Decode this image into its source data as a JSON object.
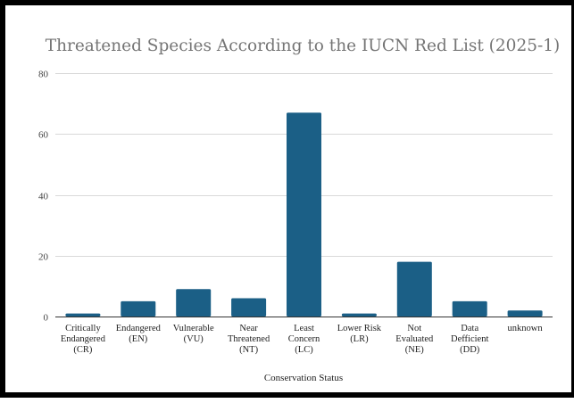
{
  "chart_data": {
    "type": "bar",
    "title": "Threatened Species According to the IUCN Red List (2025-1)",
    "xlabel": "Conservation Status",
    "ylabel": "",
    "ylim": [
      0,
      80
    ],
    "yticks": [
      0,
      20,
      40,
      60,
      80
    ],
    "grid": true,
    "legend": "none",
    "bar_color": "#1b5f86",
    "categories": [
      [
        "Critically",
        "Endangered",
        "(CR)"
      ],
      [
        "Endangered",
        "(EN)"
      ],
      [
        "Vulnerable",
        "(VU)"
      ],
      [
        "Near",
        "Threatened",
        "(NT)"
      ],
      [
        "Least",
        "Concern",
        "(LC)"
      ],
      [
        "Lower Risk",
        "(LR)"
      ],
      [
        "Not",
        "Evaluated",
        "(NE)"
      ],
      [
        "Data",
        "Defficient",
        "(DD)"
      ],
      [
        "unknown"
      ]
    ],
    "values": [
      1,
      5,
      9,
      6,
      67,
      1,
      18,
      5,
      2
    ]
  }
}
